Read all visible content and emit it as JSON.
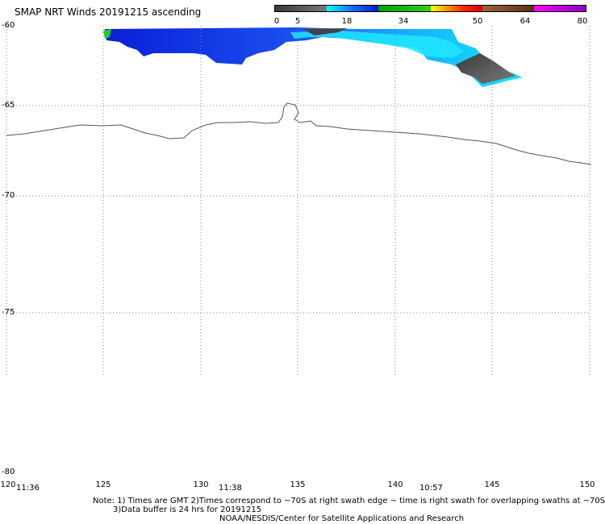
{
  "title": "SMAP NRT Winds 20191215 ascending",
  "colorbar": {
    "ticks": [
      "0",
      "5",
      "18",
      "34",
      "50",
      "64",
      "80"
    ],
    "segments": [
      {
        "from": 0,
        "to": 5,
        "color": "#555555"
      },
      {
        "from": 5,
        "to": 18,
        "color": "#0a4df5"
      },
      {
        "from": 18,
        "to": 34,
        "color": "#22c022"
      },
      {
        "from": 34,
        "to": 50,
        "color": "#f0101a"
      },
      {
        "from": 50,
        "to": 64,
        "color": "#7a4a2a"
      },
      {
        "from": 64,
        "to": 80,
        "color": "#9a0fb0"
      }
    ]
  },
  "latitude_labels": [
    "-60",
    "-65",
    "-70",
    "-75",
    "-80"
  ],
  "longitude_labels": [
    "120",
    "125",
    "130",
    "135",
    "140",
    "145",
    "150"
  ],
  "time_labels": [
    "11:36",
    "11:38",
    "10:57"
  ],
  "notes": {
    "line1": "Note: 1) Times are GMT 2)Times correspond to ~70S at right swath edge ~ time is right swath for overlapping swaths at ~70S",
    "line2": "3)Data buffer is 24 hrs for 20191215",
    "line3": "NOAA/NESDIS/Center for Satellite Applications and Research"
  }
}
